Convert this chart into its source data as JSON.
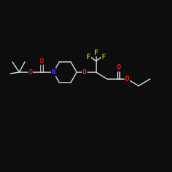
{
  "bg_color": "#0d0d0d",
  "bond_color": "#d8d8d8",
  "atom_colors": {
    "O": "#ff2200",
    "N": "#3333ff",
    "F": "#99cc00",
    "C": "#d8d8d8"
  },
  "font_size": 7.0,
  "lw": 1.1
}
